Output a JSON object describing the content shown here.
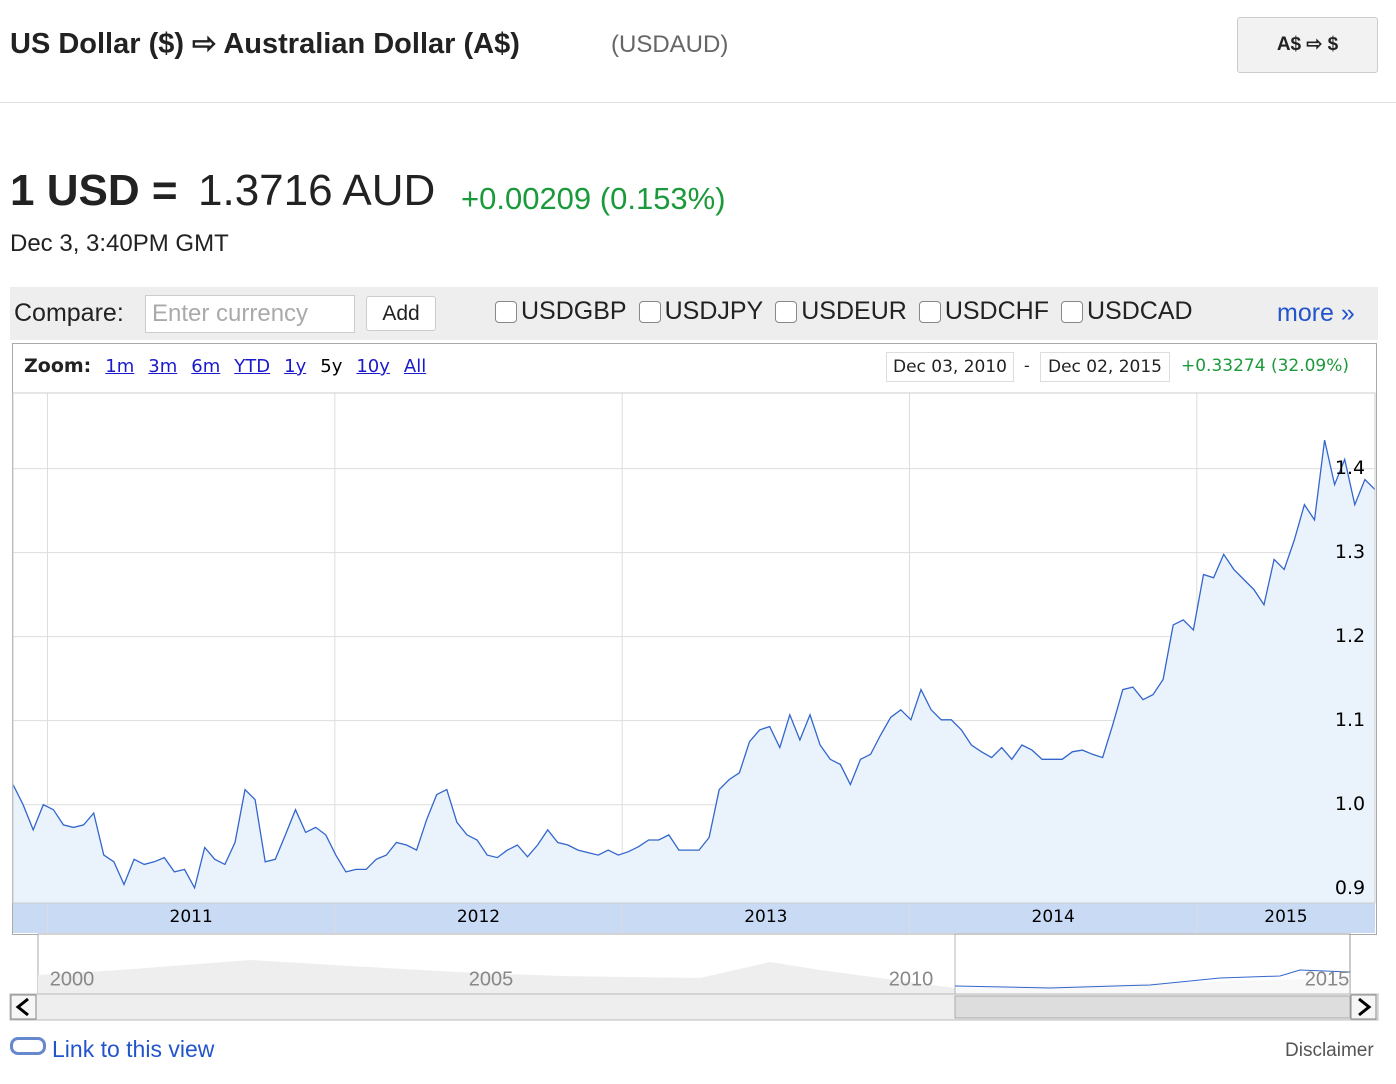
{
  "header": {
    "title": "US Dollar ($) ⇨ Australian Dollar (A$)",
    "symbol": "(USDAUD)",
    "swap_button": "A$ ⇨ $"
  },
  "quote": {
    "base": "1 USD =",
    "rate": "1.3716 AUD",
    "change": "+0.00209 (0.153%)",
    "time": "Dec 3, 3:40PM GMT"
  },
  "compare": {
    "label": "Compare:",
    "placeholder": "Enter currency",
    "add": "Add",
    "options": [
      "USDGBP",
      "USDJPY",
      "USDEUR",
      "USDCHF",
      "USDCAD"
    ],
    "more": "more »"
  },
  "zoom": {
    "label": "Zoom:",
    "options": [
      "1m",
      "3m",
      "6m",
      "YTD",
      "1y",
      "5y",
      "10y",
      "All"
    ],
    "selected": 5
  },
  "range": {
    "start": "Dec 03, 2010",
    "end": "Dec 02, 2015",
    "change": "+0.33274 (32.09%)"
  },
  "chart_data": {
    "type": "area",
    "color": "#3366cc",
    "grid": true,
    "values": [
      1.024,
      1.0,
      0.97,
      1.0,
      0.994,
      0.976,
      0.973,
      0.976,
      0.99,
      0.94,
      0.932,
      0.905,
      0.935,
      0.929,
      0.932,
      0.937,
      0.92,
      0.923,
      0.901,
      0.949,
      0.935,
      0.929,
      0.955,
      1.018,
      1.006,
      0.932,
      0.935,
      0.964,
      0.994,
      0.967,
      0.973,
      0.964,
      0.94,
      0.92,
      0.923,
      0.923,
      0.935,
      0.94,
      0.955,
      0.952,
      0.946,
      0.982,
      1.012,
      1.018,
      0.979,
      0.964,
      0.958,
      0.94,
      0.937,
      0.946,
      0.952,
      0.938,
      0.952,
      0.97,
      0.955,
      0.952,
      0.946,
      0.943,
      0.94,
      0.946,
      0.94,
      0.944,
      0.95,
      0.958,
      0.958,
      0.964,
      0.946,
      0.946,
      0.946,
      0.961,
      1.018,
      1.03,
      1.038,
      1.075,
      1.089,
      1.093,
      1.068,
      1.107,
      1.077,
      1.107,
      1.071,
      1.054,
      1.048,
      1.024,
      1.054,
      1.06,
      1.083,
      1.104,
      1.113,
      1.101,
      1.137,
      1.113,
      1.101,
      1.101,
      1.089,
      1.071,
      1.063,
      1.056,
      1.068,
      1.054,
      1.071,
      1.065,
      1.054,
      1.054,
      1.054,
      1.063,
      1.065,
      1.06,
      1.056,
      1.095,
      1.137,
      1.14,
      1.125,
      1.131,
      1.149,
      1.214,
      1.22,
      1.208,
      1.274,
      1.27,
      1.298,
      1.28,
      1.268,
      1.256,
      1.238,
      1.292,
      1.28,
      1.315,
      1.357,
      1.339,
      1.434,
      1.381,
      1.411,
      1.357,
      1.387,
      1.375
    ],
    "ylim": [
      0.883,
      1.49
    ],
    "yticks": [
      0.9,
      {
        "value": 1,
        "label": "1.0"
      },
      1.1,
      1.2,
      1.3,
      1.4
    ],
    "xlim": [
      2010.88,
      2015.62
    ],
    "xticks": [
      2011,
      2012,
      2013,
      2014,
      2015
    ]
  },
  "navigator": {
    "labels": [
      "2000",
      "2005",
      "2010",
      "2015"
    ]
  },
  "footer": {
    "link": "Link to this view",
    "disclaimer": "Disclaimer"
  }
}
